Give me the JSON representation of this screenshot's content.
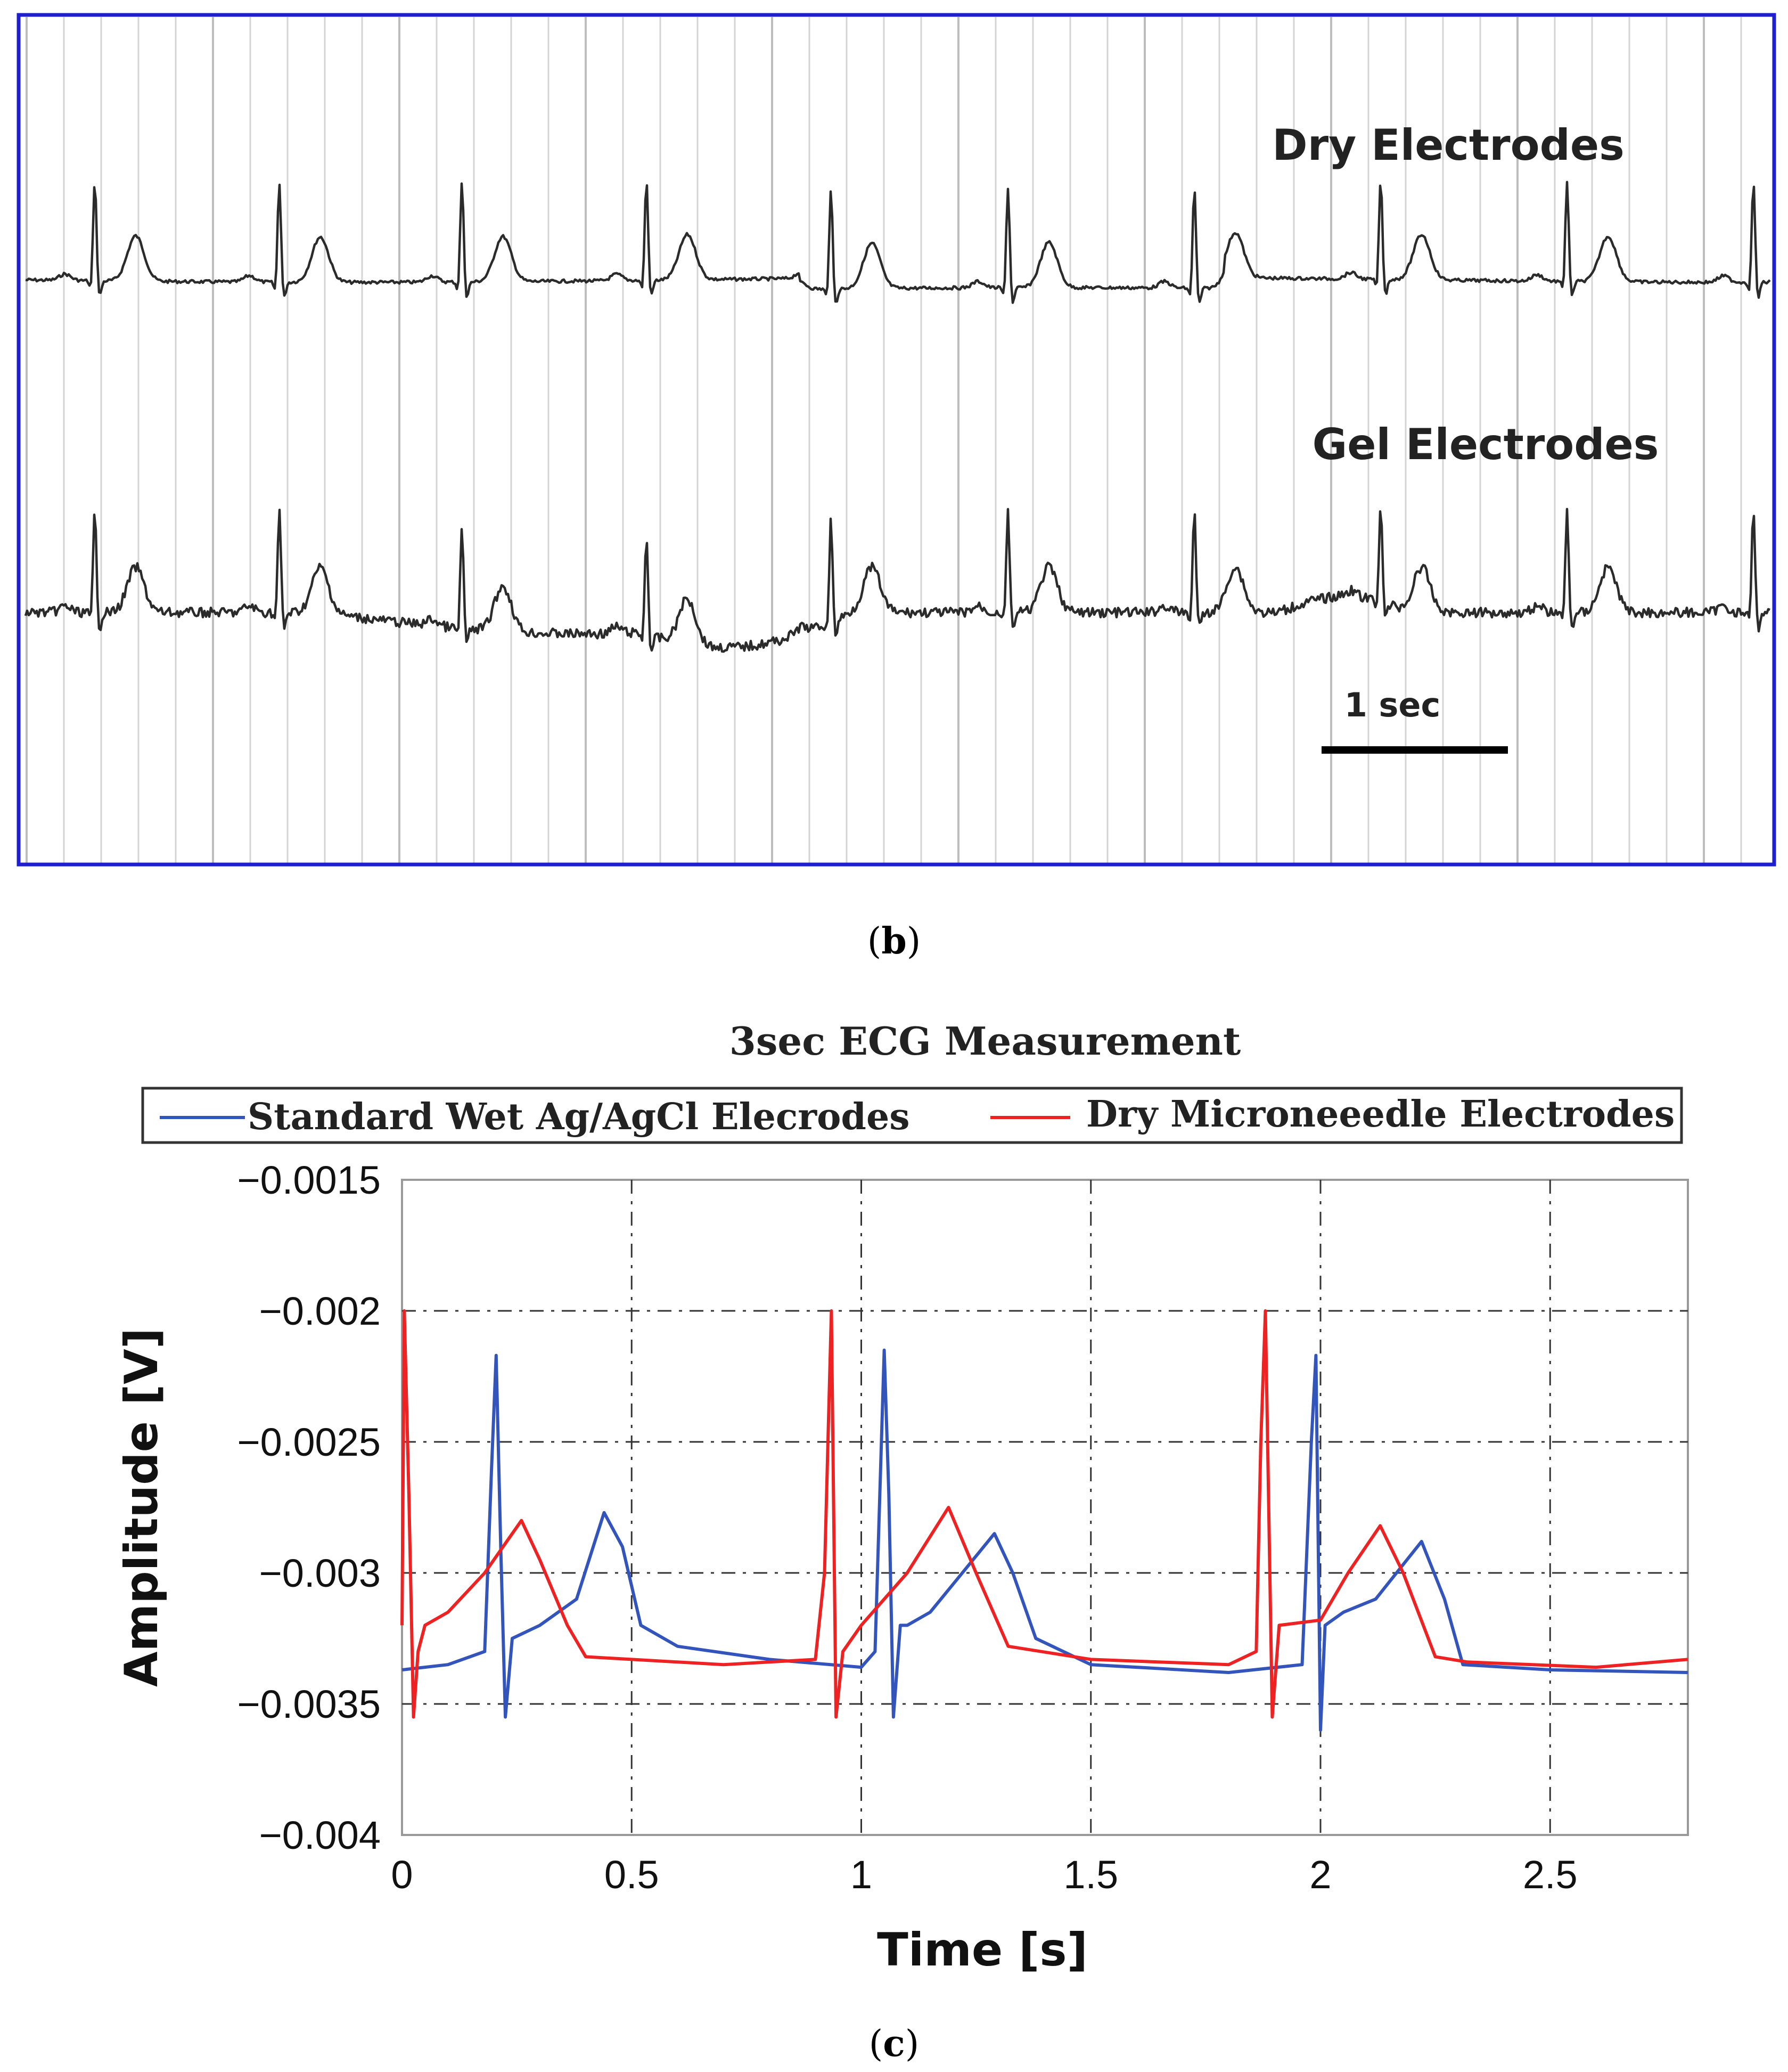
{
  "panel_b": {
    "label_open": "(",
    "label_letter": "b",
    "label_close": ")"
  },
  "panel_c": {
    "label_open": "(",
    "label_letter": "c",
    "label_close": ")"
  },
  "colors": {
    "frame_b": "#1f1fcf",
    "trace_b": "#2b2b2b",
    "series_wet": "#3355bb",
    "series_dry": "#ee2222"
  },
  "chart_data": [
    {
      "type": "line",
      "panel": "b",
      "title": "",
      "xlabel": "",
      "ylabel": "",
      "series": [
        {
          "name": "Dry Electrodes",
          "beat_times_s": [
            0.0,
            0.99,
            1.97,
            2.96,
            3.95,
            4.9,
            5.9,
            6.9,
            7.9,
            8.9
          ]
        },
        {
          "name": "Gel Electrodes",
          "beat_times_s": [
            0.0,
            0.99,
            1.97,
            2.96,
            3.95,
            4.9,
            5.9,
            6.9,
            7.9,
            8.9
          ]
        }
      ],
      "scale_bar": {
        "label": "1 sec",
        "length_s": 1
      },
      "grid": "vertical lines"
    },
    {
      "type": "line",
      "panel": "c",
      "title": "3sec ECG Measurement",
      "xlabel": "Time [s]",
      "ylabel": "Amplitude [V]",
      "xlim": [
        0,
        2.8
      ],
      "ylim": [
        -0.004,
        -0.0015
      ],
      "x_ticks": [
        0,
        0.5,
        1,
        1.5,
        2,
        2.5
      ],
      "x_tick_labels": [
        "0",
        "0.5",
        "1",
        "1.5",
        "2",
        "2.5"
      ],
      "y_ticks": [
        -0.0015,
        -0.002,
        -0.0025,
        -0.003,
        -0.0035,
        -0.004
      ],
      "y_tick_labels": [
        "−0.0015",
        "−0.002",
        "−0.0025",
        "−0.003",
        "−0.0035",
        "−0.004"
      ],
      "grid": true,
      "legend_position": "top",
      "series": [
        {
          "name": "Standard Wet Ag/AgCl Elecrodes",
          "color": "#3355bb",
          "x": [
            0,
            0.1,
            0.18,
            0.195,
            0.205,
            0.215,
            0.225,
            0.24,
            0.3,
            0.38,
            0.44,
            0.48,
            0.52,
            0.6,
            0.8,
            1.0,
            1.03,
            1.05,
            1.06,
            1.07,
            1.085,
            1.1,
            1.15,
            1.22,
            1.29,
            1.33,
            1.38,
            1.5,
            1.8,
            1.96,
            1.98,
            1.99,
            2.0,
            2.01,
            2.05,
            2.12,
            2.22,
            2.27,
            2.31,
            2.5,
            2.8
          ],
          "y": [
            -0.00337,
            -0.00335,
            -0.0033,
            -0.0026,
            -0.00217,
            -0.0029,
            -0.00355,
            -0.00325,
            -0.0032,
            -0.0031,
            -0.00277,
            -0.0029,
            -0.0032,
            -0.00328,
            -0.00333,
            -0.00336,
            -0.0033,
            -0.00215,
            -0.0027,
            -0.00355,
            -0.0032,
            -0.0032,
            -0.00315,
            -0.003,
            -0.00285,
            -0.003,
            -0.00325,
            -0.00335,
            -0.00338,
            -0.00335,
            -0.0025,
            -0.00217,
            -0.0036,
            -0.0032,
            -0.00315,
            -0.0031,
            -0.00288,
            -0.0031,
            -0.00335,
            -0.00337,
            -0.00338
          ]
        },
        {
          "name": "Dry Microneeedle Electrodes",
          "color": "#ee2222",
          "x": [
            0,
            0.005,
            0.015,
            0.025,
            0.035,
            0.05,
            0.1,
            0.18,
            0.26,
            0.3,
            0.36,
            0.4,
            0.5,
            0.7,
            0.9,
            0.92,
            0.935,
            0.945,
            0.96,
            1.0,
            1.1,
            1.19,
            1.25,
            1.32,
            1.5,
            1.8,
            1.86,
            1.87,
            1.88,
            1.895,
            1.91,
            2.0,
            2.06,
            2.13,
            2.18,
            2.25,
            2.32,
            2.6,
            2.8
          ],
          "y": [
            -0.0032,
            -0.002,
            -0.0027,
            -0.00355,
            -0.0033,
            -0.0032,
            -0.00315,
            -0.003,
            -0.0028,
            -0.00295,
            -0.0032,
            -0.00332,
            -0.00333,
            -0.00335,
            -0.00333,
            -0.003,
            -0.002,
            -0.00355,
            -0.0033,
            -0.0032,
            -0.003,
            -0.00275,
            -0.003,
            -0.00328,
            -0.00333,
            -0.00335,
            -0.0033,
            -0.0025,
            -0.002,
            -0.00355,
            -0.0032,
            -0.00318,
            -0.003,
            -0.00282,
            -0.003,
            -0.00332,
            -0.00334,
            -0.00336,
            -0.00333
          ]
        }
      ]
    }
  ]
}
